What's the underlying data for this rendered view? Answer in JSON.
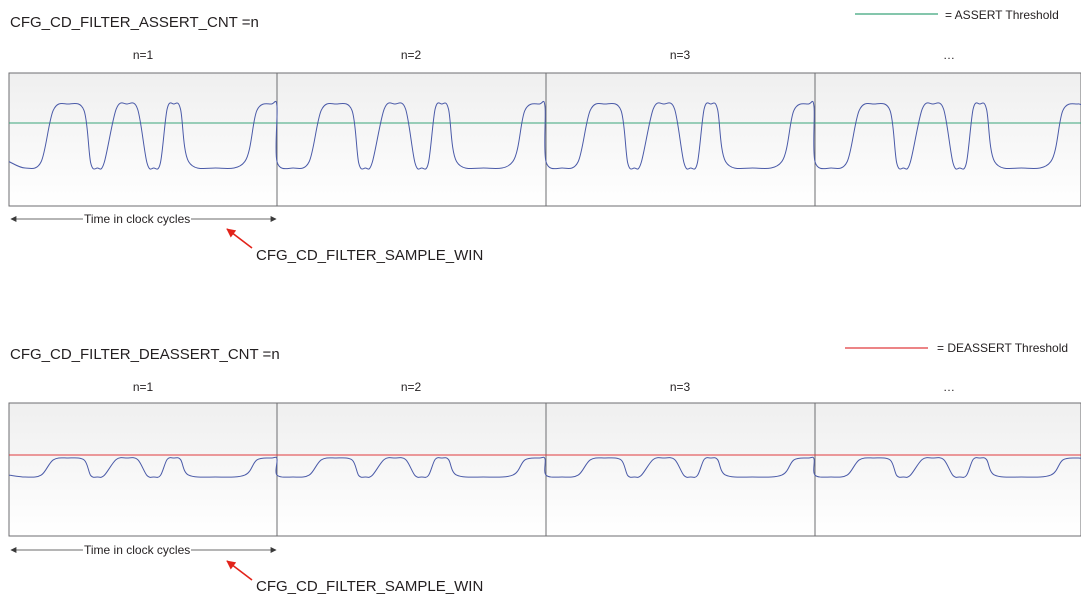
{
  "colors": {
    "signal": "#4a5aa8",
    "assert_threshold": "#3aa57a",
    "deassert_threshold": "#e03a3e",
    "arrow": "#e2231a",
    "border": "#6d6e71"
  },
  "assert": {
    "title": "CFG_CD_FILTER_ASSERT_CNT =n",
    "legend": "= ASSERT Threshold",
    "windows": [
      "n=1",
      "n=2",
      "n=3",
      "…"
    ],
    "time_label": "Time in clock cycles",
    "sample_win_label": "CFG_CD_FILTER_SAMPLE_WIN"
  },
  "deassert": {
    "title": "CFG_CD_FILTER_DEASSERT_CNT =n",
    "legend": "= DEASSERT Threshold",
    "windows": [
      "n=1",
      "n=2",
      "n=3",
      "…"
    ],
    "time_label": "Time in clock cycles",
    "sample_win_label": "CFG_CD_FILTER_SAMPLE_WIN"
  }
}
